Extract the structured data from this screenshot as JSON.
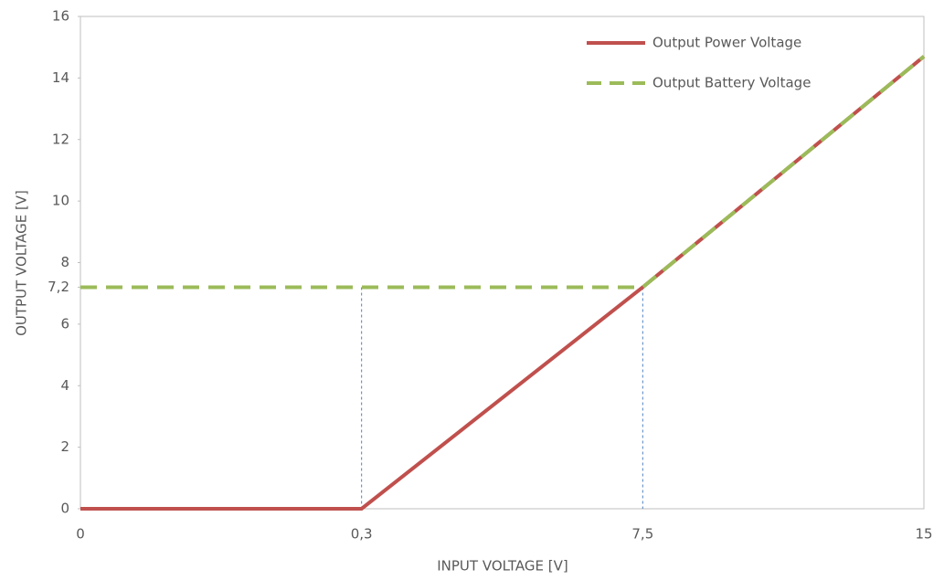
{
  "chart_data": {
    "type": "line",
    "x_label": "INPUT VOLTAGE [V]",
    "y_label": "OUTPUT VOLTAGE [V]",
    "categories": [
      "0",
      "0,3",
      "7,5",
      "15"
    ],
    "series": [
      {
        "name": "Output Power Voltage",
        "color": "#c0504d",
        "dash": false,
        "values": [
          0,
          0,
          7.2,
          14.7
        ]
      },
      {
        "name": "Output Battery Voltage",
        "color": "#9bbb59",
        "dash": true,
        "values": [
          7.2,
          7.2,
          7.2,
          14.7
        ]
      }
    ],
    "ylim": [
      0,
      16
    ],
    "yticks": [
      0,
      2,
      4,
      6,
      {
        "value": 7.2,
        "label": "7,2"
      },
      8,
      10,
      12,
      14,
      16
    ],
    "legend": "upper right"
  }
}
